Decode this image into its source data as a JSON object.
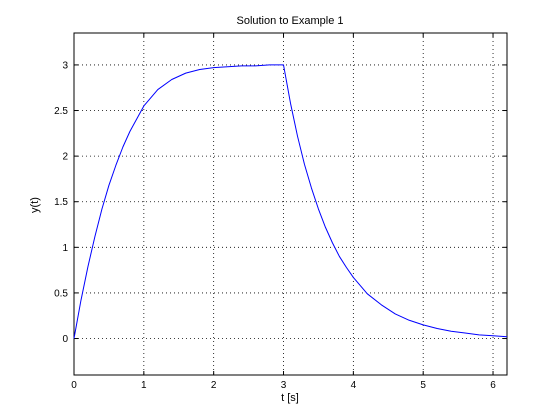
{
  "chart_data": {
    "type": "line",
    "title": "Solution to Example 1",
    "xlabel": "t [s]",
    "ylabel": "y(t)",
    "xlim": [
      0,
      6.2
    ],
    "ylim": [
      -0.4,
      3.35
    ],
    "x_ticks": [
      0,
      1,
      2,
      3,
      4,
      5,
      6
    ],
    "x_tick_labels": [
      "0",
      "1",
      "2",
      "3",
      "4",
      "5",
      "6"
    ],
    "y_ticks": [
      0,
      0.5,
      1,
      1.5,
      2,
      2.5,
      3
    ],
    "y_tick_labels": [
      "0",
      "0.5",
      "1",
      "1.5",
      "2",
      "2.5",
      "3"
    ],
    "grid": true,
    "grid_style": "dotted",
    "line_color": "#0000ff",
    "series": [
      {
        "x": [
          0,
          0.1,
          0.2,
          0.3,
          0.4,
          0.5,
          0.6,
          0.7,
          0.8,
          0.9,
          1.0,
          1.2,
          1.4,
          1.6,
          1.8,
          2.0,
          2.2,
          2.4,
          2.6,
          2.8,
          3.0,
          3.1,
          3.2,
          3.3,
          3.4,
          3.5,
          3.6,
          3.7,
          3.8,
          3.9,
          4.0,
          4.2,
          4.4,
          4.6,
          4.8,
          5.0,
          5.2,
          5.4,
          5.6,
          5.8,
          6.0,
          6.2
        ],
        "y": [
          0,
          0.42,
          0.79,
          1.12,
          1.42,
          1.68,
          1.9,
          2.1,
          2.27,
          2.41,
          2.55,
          2.73,
          2.84,
          2.91,
          2.95,
          2.97,
          2.98,
          2.99,
          2.99,
          3.0,
          3.0,
          2.58,
          2.22,
          1.91,
          1.65,
          1.42,
          1.22,
          1.05,
          0.9,
          0.78,
          0.67,
          0.49,
          0.37,
          0.27,
          0.2,
          0.15,
          0.11,
          0.08,
          0.06,
          0.04,
          0.03,
          0.02
        ]
      }
    ]
  }
}
